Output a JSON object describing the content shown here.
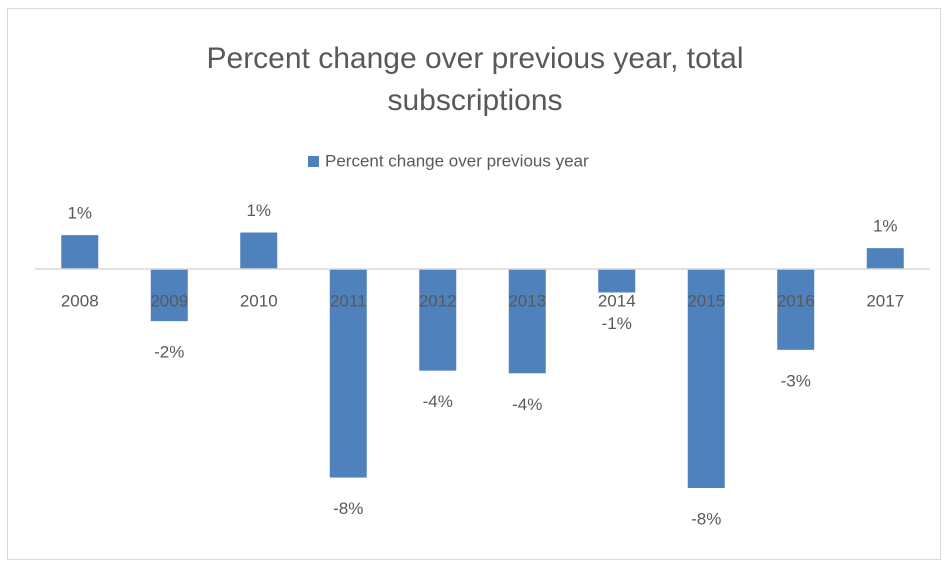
{
  "chart_data": {
    "type": "bar",
    "title": "Percent change over previous year, total subscriptions",
    "categories": [
      "2008",
      "2009",
      "2010",
      "2011",
      "2012",
      "2013",
      "2014",
      "2015",
      "2016",
      "2017"
    ],
    "series": [
      {
        "name": "Percent change over previous year",
        "color": "#4f81bd",
        "values": [
          1.3,
          -2.0,
          1.4,
          -8.0,
          -3.9,
          -4.0,
          -0.9,
          -8.4,
          -3.1,
          0.8
        ],
        "value_labels": [
          "1%",
          "-2%",
          "1%",
          "-8%",
          "-4%",
          "-4%",
          "-1%",
          "-8%",
          "-3%",
          "1%"
        ]
      }
    ],
    "legend": "top"
  }
}
